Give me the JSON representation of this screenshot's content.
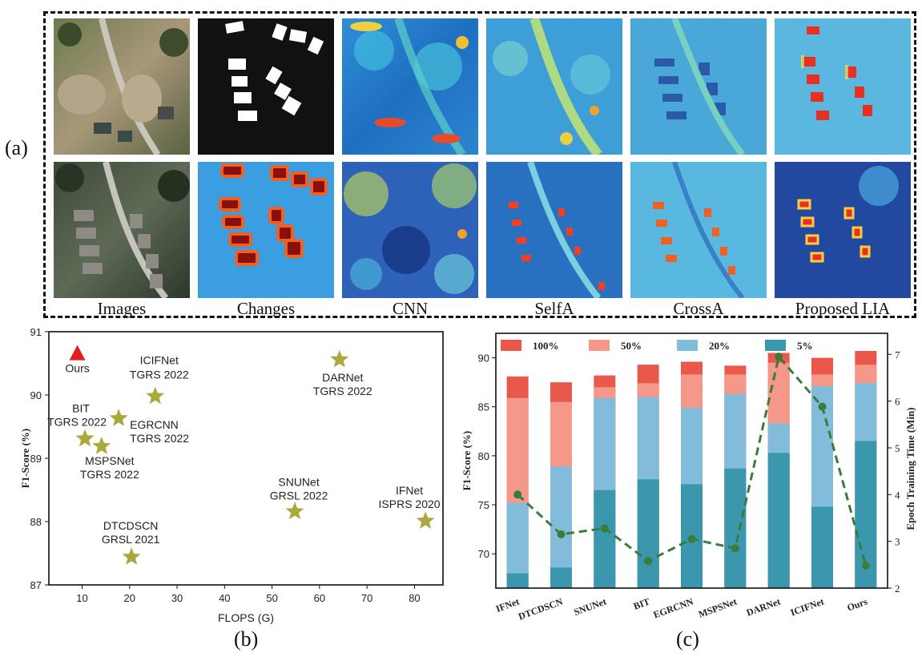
{
  "panel_labels": {
    "a": "(a)",
    "b": "(b)",
    "c": "(c)"
  },
  "panel_a": {
    "columns": [
      "Images",
      "Changes",
      "CNN",
      "SelfA",
      "CrossA",
      "Proposed LIA"
    ]
  },
  "chart_data": [
    {
      "type": "scatter",
      "xlabel": "FLOPS (G)",
      "ylabel": "F1-Score (%)",
      "xlim": [
        3,
        86
      ],
      "ylim": [
        87,
        91
      ],
      "xticks": [
        10,
        20,
        30,
        40,
        50,
        60,
        70,
        80
      ],
      "yticks": [
        87,
        88,
        89,
        90,
        91
      ],
      "grid": false,
      "points": [
        {
          "name": "Ours",
          "sub": "",
          "x": 9,
          "y": 90.65,
          "marker": "triangle",
          "color": "#e02020"
        },
        {
          "name": "ICIFNet",
          "sub": "TGRS 2022",
          "x": 25.4,
          "y": 89.98,
          "marker": "star",
          "color": "#aaa93c"
        },
        {
          "name": "DARNet",
          "sub": "TGRS 2022",
          "x": 64.2,
          "y": 90.56,
          "marker": "star",
          "color": "#aaa93c"
        },
        {
          "name": "BIT",
          "sub": "TGRS 2022",
          "x": 10.6,
          "y": 89.31,
          "marker": "star",
          "color": "#aaa93c"
        },
        {
          "name": "EGRCNN",
          "sub": "TGRS 2022",
          "x": 17.7,
          "y": 89.63,
          "marker": "star",
          "color": "#aaa93c"
        },
        {
          "name": "MSPSNet",
          "sub": "TGRS 2022",
          "x": 14.1,
          "y": 89.19,
          "marker": "star",
          "color": "#aaa93c"
        },
        {
          "name": "SNUNet",
          "sub": "GRSL 2022",
          "x": 54.8,
          "y": 88.16,
          "marker": "star",
          "color": "#aaa93c"
        },
        {
          "name": "IFNet",
          "sub": "ISPRS 2020",
          "x": 82.3,
          "y": 88.01,
          "marker": "star",
          "color": "#aaa93c"
        },
        {
          "name": "DTCDSCN",
          "sub": "GRSL 2021",
          "x": 20.4,
          "y": 87.44,
          "marker": "star",
          "color": "#aaa93c"
        }
      ]
    },
    {
      "type": "bar",
      "stacked": "overlay",
      "categories": [
        "IFNet",
        "DTCDSCN",
        "SNUNet",
        "BIT",
        "EGRCNN",
        "MSPSNet",
        "DARNet",
        "ICIFNet",
        "Ours"
      ],
      "ylabel": "F1-Score (%)",
      "y2label": "Epoch Training Time (Min)",
      "ylim": [
        66.5,
        92.5
      ],
      "yticks": [
        70,
        75,
        80,
        85,
        90
      ],
      "y2lim": [
        2,
        7.45
      ],
      "y2ticks": [
        2,
        3,
        4,
        5,
        6,
        7
      ],
      "legend_position": "top",
      "series": [
        {
          "name": "100%",
          "color": "#e9584a",
          "values": [
            88.1,
            87.5,
            88.2,
            89.3,
            89.6,
            89.2,
            90.5,
            90.0,
            90.7
          ]
        },
        {
          "name": "50%",
          "color": "#f4998a",
          "values": [
            85.9,
            85.5,
            87.0,
            87.4,
            88.3,
            88.3,
            89.5,
            88.3,
            89.3
          ]
        },
        {
          "name": "20%",
          "color": "#82bcdb",
          "values": [
            75.2,
            78.9,
            85.9,
            86.0,
            84.9,
            86.3,
            83.3,
            87.1,
            87.4
          ]
        },
        {
          "name": "5%",
          "color": "#3b97ad",
          "values": [
            68.0,
            68.6,
            76.5,
            77.6,
            77.1,
            78.7,
            80.3,
            74.8,
            81.5
          ]
        }
      ],
      "line": {
        "color": "#3a7d3a",
        "values": [
          4.0,
          3.15,
          3.28,
          2.58,
          3.05,
          2.85,
          6.95,
          5.88,
          2.48
        ]
      }
    }
  ]
}
